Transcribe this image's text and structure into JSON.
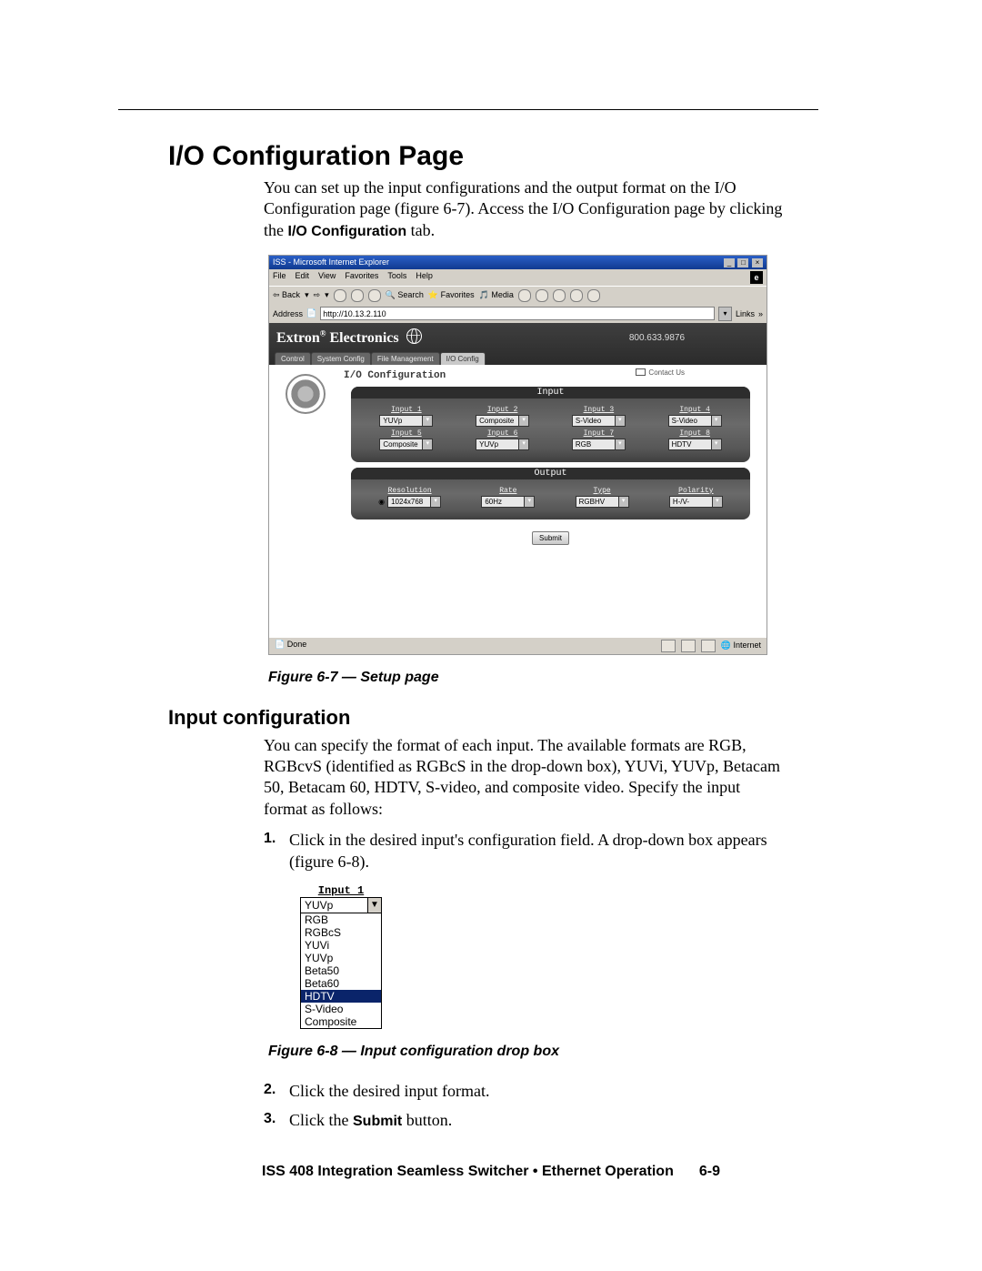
{
  "page": {
    "title": "I/O Configuration Page",
    "intro_text": "You can set up the input configurations and the output format on the I/O Configuration page (figure 6-7).  Access the I/O Configuration page by clicking the ",
    "intro_bold": "I/O Configuration",
    "intro_tail": " tab."
  },
  "screenshot": {
    "ie_title": "ISS - Microsoft Internet Explorer",
    "menu": [
      "File",
      "Edit",
      "View",
      "Favorites",
      "Tools",
      "Help"
    ],
    "toolbar": {
      "back": "Back",
      "search": "Search",
      "favorites": "Favorites",
      "media": "Media"
    },
    "address_label": "Address",
    "address_value": "http://10.13.2.110",
    "links_label": "Links",
    "brand": "Extron Electronics",
    "phone": "800.633.9876",
    "tabs": [
      "Control",
      "System Config",
      "File Management",
      "I/O Config"
    ],
    "active_tab_index": 3,
    "contact": "Contact Us",
    "section_title": "I/O Configuration",
    "input_panel": {
      "title": "Input",
      "fields": [
        {
          "label": "Input 1",
          "value": "YUVp"
        },
        {
          "label": "Input 2",
          "value": "Composite"
        },
        {
          "label": "Input 3",
          "value": "S-Video"
        },
        {
          "label": "Input 4",
          "value": "S-Video"
        },
        {
          "label": "Input 5",
          "value": "Composite"
        },
        {
          "label": "Input 6",
          "value": "YUVp"
        },
        {
          "label": "Input 7",
          "value": "RGB"
        },
        {
          "label": "Input 8",
          "value": "HDTV",
          "highlight": true
        }
      ]
    },
    "output_panel": {
      "title": "Output",
      "resolution": {
        "label": "Resolution",
        "value": "1024x768",
        "radio": true
      },
      "rate": {
        "label": "Rate",
        "value": "60Hz"
      },
      "type": {
        "label": "Type",
        "value": "RGBHV"
      },
      "polarity": {
        "label": "Polarity",
        "value": "H-/V-"
      }
    },
    "submit": "Submit",
    "status_done": "Done",
    "status_zone": "Internet"
  },
  "fig7_caption": "Figure 6-7 — Setup page",
  "input_config": {
    "heading": "Input configuration",
    "para": "You can specify the format of each input.  The available formats are RGB, RGBcvS (identified as RGBcS in the drop-down box), YUVi, YUVp, Betacam 50, Betacam 60, HDTV, S-video, and composite video.  Specify the input format as follows:",
    "steps": [
      "Click in the desired input's configuration field.  A drop-down box appears (figure 6-8).",
      "Click the desired input format.",
      "Click the Submit button."
    ],
    "step3_pre": "Click the ",
    "step3_bold": "Submit",
    "step3_post": " button."
  },
  "dropfig": {
    "title": "Input 1",
    "current": "YUVp",
    "options": [
      "RGB",
      "RGBcS",
      "YUVi",
      "YUVp",
      "Beta50",
      "Beta60",
      "HDTV",
      "S-Video",
      "Composite"
    ],
    "highlight": "HDTV"
  },
  "fig8_caption": "Figure 6-8 — Input configuration drop box",
  "footer": {
    "text": "ISS 408 Integration Seamless Switcher • Ethernet Operation",
    "page": "6-9"
  },
  "colors": {
    "ie_chrome": "#d4d0c8",
    "brand_band": "#333333",
    "panel": "#555555",
    "highlight": "#0a246a"
  }
}
